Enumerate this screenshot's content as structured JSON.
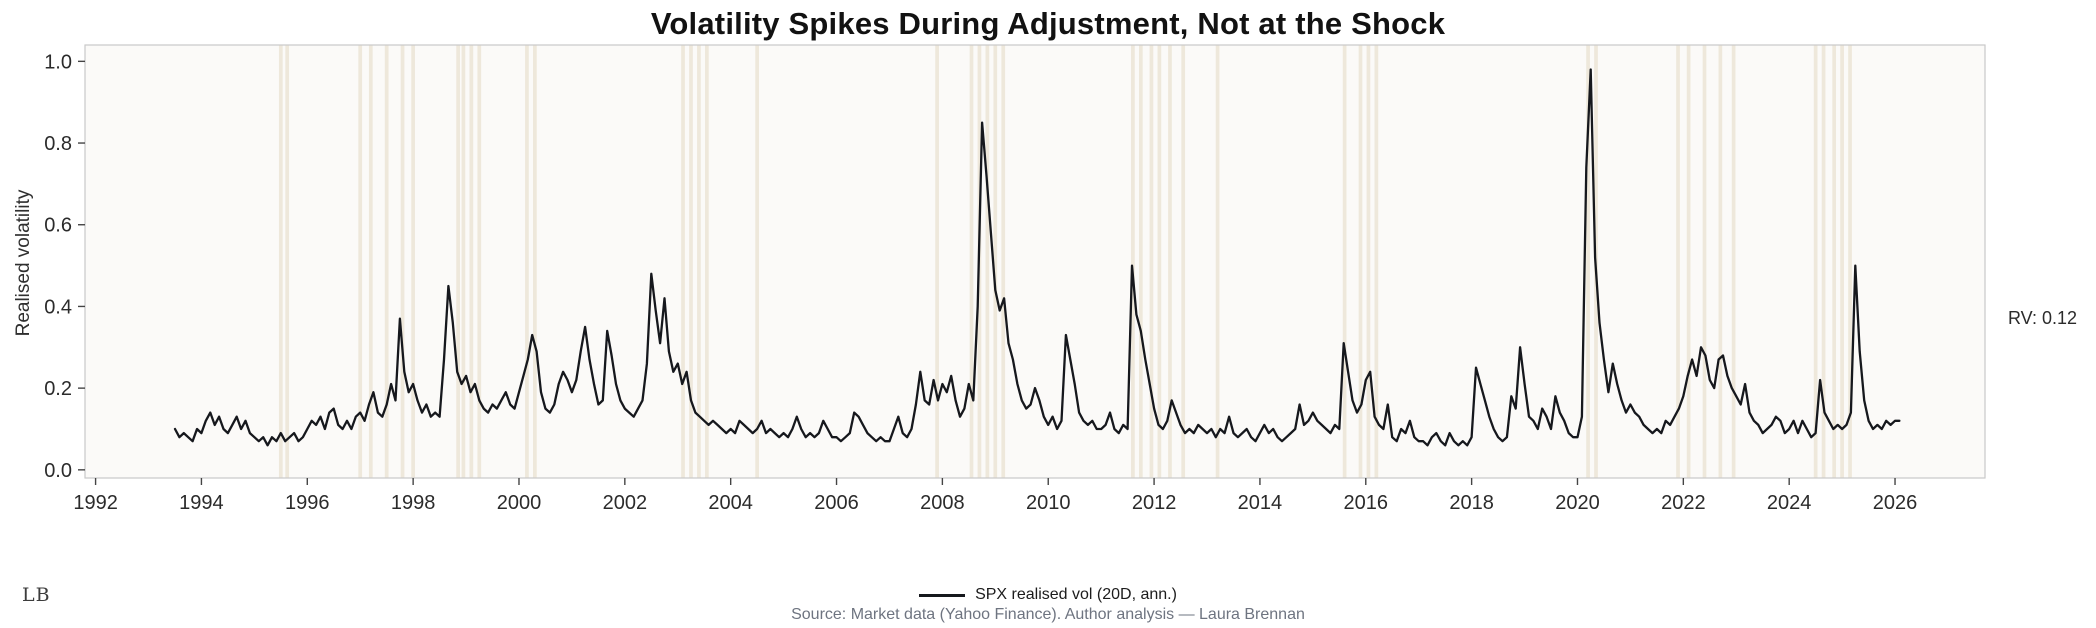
{
  "header": {
    "title": "Volatility Spikes During Adjustment, Not at the Shock"
  },
  "footer": {
    "source": "Source: Market data (Yahoo Finance). Author analysis — Laura Brennan",
    "logo": "LB"
  },
  "chart_data": {
    "type": "line",
    "title": "Volatility Spikes During Adjustment, Not at the Shock",
    "xlabel": "",
    "ylabel": "Realised volatility",
    "xlim": [
      1991.8,
      2027.7
    ],
    "ylim": [
      -0.02,
      1.04
    ],
    "xticks": [
      1992,
      1994,
      1996,
      1998,
      2000,
      2002,
      2004,
      2006,
      2008,
      2010,
      2012,
      2014,
      2016,
      2018,
      2020,
      2022,
      2024,
      2026
    ],
    "yticks": [
      0.0,
      0.2,
      0.4,
      0.6,
      0.8,
      1.0
    ],
    "ytick_labels": [
      "0.0",
      "0.2",
      "0.4",
      "0.6",
      "0.8",
      "1.0"
    ],
    "grid": false,
    "legend_position": "bottom-center",
    "line_color": "#16181d",
    "plot_bg": "#fbfaf8",
    "frame_color": "#c9c9c9",
    "annotation": {
      "text": "RV: 0.12",
      "value": 0.12
    },
    "event_bands": {
      "color": "#e3d9c2",
      "opacity": 0.55,
      "width_years": 0.07,
      "x_positions": [
        1995.5,
        1995.62,
        1997.0,
        1997.2,
        1997.5,
        1997.8,
        1998.0,
        1998.85,
        1998.95,
        1999.1,
        1999.25,
        2000.15,
        2000.3,
        2003.1,
        2003.25,
        2003.4,
        2003.55,
        2004.5,
        2007.9,
        2008.55,
        2008.7,
        2008.85,
        2009.0,
        2009.15,
        2011.6,
        2011.75,
        2011.95,
        2012.1,
        2012.3,
        2012.55,
        2013.2,
        2015.6,
        2015.9,
        2016.05,
        2016.2,
        2020.2,
        2020.35,
        2021.9,
        2022.1,
        2022.4,
        2022.7,
        2022.95,
        2024.5,
        2024.65,
        2024.85,
        2025.0,
        2025.15
      ]
    },
    "series": [
      {
        "name": "SPX realised vol (20D, ann.)",
        "color": "#16181d",
        "x_start": 1993.5,
        "x_step_years": 0.0833333,
        "values": [
          0.1,
          0.08,
          0.09,
          0.08,
          0.07,
          0.1,
          0.09,
          0.12,
          0.14,
          0.11,
          0.13,
          0.1,
          0.09,
          0.11,
          0.13,
          0.1,
          0.12,
          0.09,
          0.08,
          0.07,
          0.08,
          0.06,
          0.08,
          0.07,
          0.09,
          0.07,
          0.08,
          0.09,
          0.07,
          0.08,
          0.1,
          0.12,
          0.11,
          0.13,
          0.1,
          0.14,
          0.15,
          0.11,
          0.1,
          0.12,
          0.1,
          0.13,
          0.14,
          0.12,
          0.16,
          0.19,
          0.14,
          0.13,
          0.16,
          0.21,
          0.17,
          0.37,
          0.24,
          0.19,
          0.21,
          0.17,
          0.14,
          0.16,
          0.13,
          0.14,
          0.13,
          0.27,
          0.45,
          0.36,
          0.24,
          0.21,
          0.23,
          0.19,
          0.21,
          0.17,
          0.15,
          0.14,
          0.16,
          0.15,
          0.17,
          0.19,
          0.16,
          0.15,
          0.19,
          0.23,
          0.27,
          0.33,
          0.29,
          0.19,
          0.15,
          0.14,
          0.16,
          0.21,
          0.24,
          0.22,
          0.19,
          0.22,
          0.29,
          0.35,
          0.27,
          0.21,
          0.16,
          0.17,
          0.34,
          0.28,
          0.21,
          0.17,
          0.15,
          0.14,
          0.13,
          0.15,
          0.17,
          0.26,
          0.48,
          0.39,
          0.31,
          0.42,
          0.29,
          0.24,
          0.26,
          0.21,
          0.24,
          0.17,
          0.14,
          0.13,
          0.12,
          0.11,
          0.12,
          0.11,
          0.1,
          0.09,
          0.1,
          0.09,
          0.12,
          0.11,
          0.1,
          0.09,
          0.1,
          0.12,
          0.09,
          0.1,
          0.09,
          0.08,
          0.09,
          0.08,
          0.1,
          0.13,
          0.1,
          0.08,
          0.09,
          0.08,
          0.09,
          0.12,
          0.1,
          0.08,
          0.08,
          0.07,
          0.08,
          0.09,
          0.14,
          0.13,
          0.11,
          0.09,
          0.08,
          0.07,
          0.08,
          0.07,
          0.07,
          0.1,
          0.13,
          0.09,
          0.08,
          0.1,
          0.16,
          0.24,
          0.17,
          0.16,
          0.22,
          0.17,
          0.21,
          0.19,
          0.23,
          0.17,
          0.13,
          0.15,
          0.21,
          0.17,
          0.4,
          0.85,
          0.72,
          0.58,
          0.44,
          0.39,
          0.42,
          0.31,
          0.27,
          0.21,
          0.17,
          0.15,
          0.16,
          0.2,
          0.17,
          0.13,
          0.11,
          0.13,
          0.1,
          0.12,
          0.33,
          0.27,
          0.21,
          0.14,
          0.12,
          0.11,
          0.12,
          0.1,
          0.1,
          0.11,
          0.14,
          0.1,
          0.09,
          0.11,
          0.1,
          0.5,
          0.38,
          0.34,
          0.27,
          0.21,
          0.15,
          0.11,
          0.1,
          0.12,
          0.17,
          0.14,
          0.11,
          0.09,
          0.1,
          0.09,
          0.11,
          0.1,
          0.09,
          0.1,
          0.08,
          0.1,
          0.09,
          0.13,
          0.09,
          0.08,
          0.09,
          0.1,
          0.08,
          0.07,
          0.09,
          0.11,
          0.09,
          0.1,
          0.08,
          0.07,
          0.08,
          0.09,
          0.1,
          0.16,
          0.11,
          0.12,
          0.14,
          0.12,
          0.11,
          0.1,
          0.09,
          0.11,
          0.1,
          0.31,
          0.24,
          0.17,
          0.14,
          0.16,
          0.22,
          0.24,
          0.13,
          0.11,
          0.1,
          0.16,
          0.08,
          0.07,
          0.1,
          0.09,
          0.12,
          0.08,
          0.07,
          0.07,
          0.06,
          0.08,
          0.09,
          0.07,
          0.06,
          0.09,
          0.07,
          0.06,
          0.07,
          0.06,
          0.08,
          0.25,
          0.21,
          0.17,
          0.13,
          0.1,
          0.08,
          0.07,
          0.08,
          0.18,
          0.15,
          0.3,
          0.21,
          0.13,
          0.12,
          0.1,
          0.15,
          0.13,
          0.1,
          0.18,
          0.14,
          0.12,
          0.09,
          0.08,
          0.08,
          0.13,
          0.74,
          0.98,
          0.52,
          0.36,
          0.27,
          0.19,
          0.26,
          0.21,
          0.17,
          0.14,
          0.16,
          0.14,
          0.13,
          0.11,
          0.1,
          0.09,
          0.1,
          0.09,
          0.12,
          0.11,
          0.13,
          0.15,
          0.18,
          0.23,
          0.27,
          0.23,
          0.3,
          0.28,
          0.22,
          0.2,
          0.27,
          0.28,
          0.23,
          0.2,
          0.18,
          0.16,
          0.21,
          0.14,
          0.12,
          0.11,
          0.09,
          0.1,
          0.11,
          0.13,
          0.12,
          0.09,
          0.1,
          0.12,
          0.09,
          0.12,
          0.1,
          0.08,
          0.09,
          0.22,
          0.14,
          0.12,
          0.1,
          0.11,
          0.1,
          0.11,
          0.14,
          0.5,
          0.29,
          0.17,
          0.12,
          0.1,
          0.11,
          0.1,
          0.12,
          0.11,
          0.12,
          0.12
        ]
      }
    ]
  }
}
